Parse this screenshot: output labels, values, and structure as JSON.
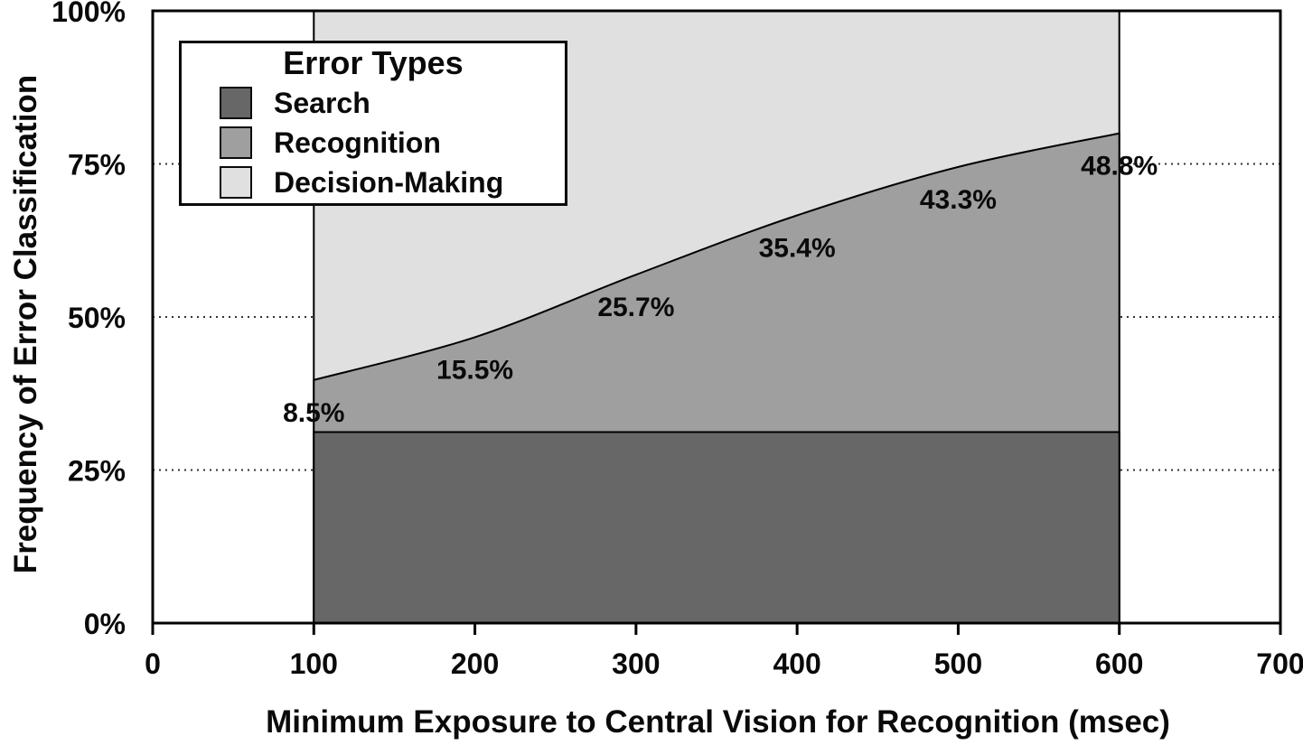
{
  "chart_data": {
    "type": "area",
    "stacked": true,
    "title": "",
    "xlabel": "Minimum Exposure to Central Vision for Recognition (msec)",
    "ylabel": "Frequency of Error Classification",
    "xlim": [
      0,
      700
    ],
    "ylim": [
      0,
      100
    ],
    "x_ticks": [
      0,
      100,
      200,
      300,
      400,
      500,
      600,
      700
    ],
    "y_ticks": [
      {
        "label": "0%",
        "value": 0
      },
      {
        "label": "25%",
        "value": 25
      },
      {
        "label": "50%",
        "value": 50
      },
      {
        "label": "75%",
        "value": 75
      },
      {
        "label": "100%",
        "value": 100
      }
    ],
    "gridline_values": [
      25,
      50,
      75
    ],
    "grid_style": "dotted",
    "x": [
      100,
      200,
      300,
      400,
      500,
      600
    ],
    "legend": {
      "title": "Error Types",
      "position": "top-left"
    },
    "series": [
      {
        "name": "Search",
        "color": "#676767",
        "values": [
          31.2,
          31.2,
          31.2,
          31.2,
          31.2,
          31.2
        ]
      },
      {
        "name": "Recognition",
        "color": "#9f9f9f",
        "values": [
          8.5,
          15.5,
          25.7,
          35.4,
          43.3,
          48.8
        ],
        "point_labels": [
          "8.5%",
          "15.5%",
          "25.7%",
          "35.4%",
          "43.3%",
          "48.8%"
        ]
      },
      {
        "name": "Decision-Making",
        "color": "#e0e0e0",
        "values": [
          60.3,
          53.3,
          43.1,
          33.4,
          25.5,
          20.0
        ]
      }
    ],
    "colors": {
      "axis": "#000000",
      "text": "#0a0a0a",
      "gridline": "#333333",
      "background": "#ffffff"
    }
  }
}
